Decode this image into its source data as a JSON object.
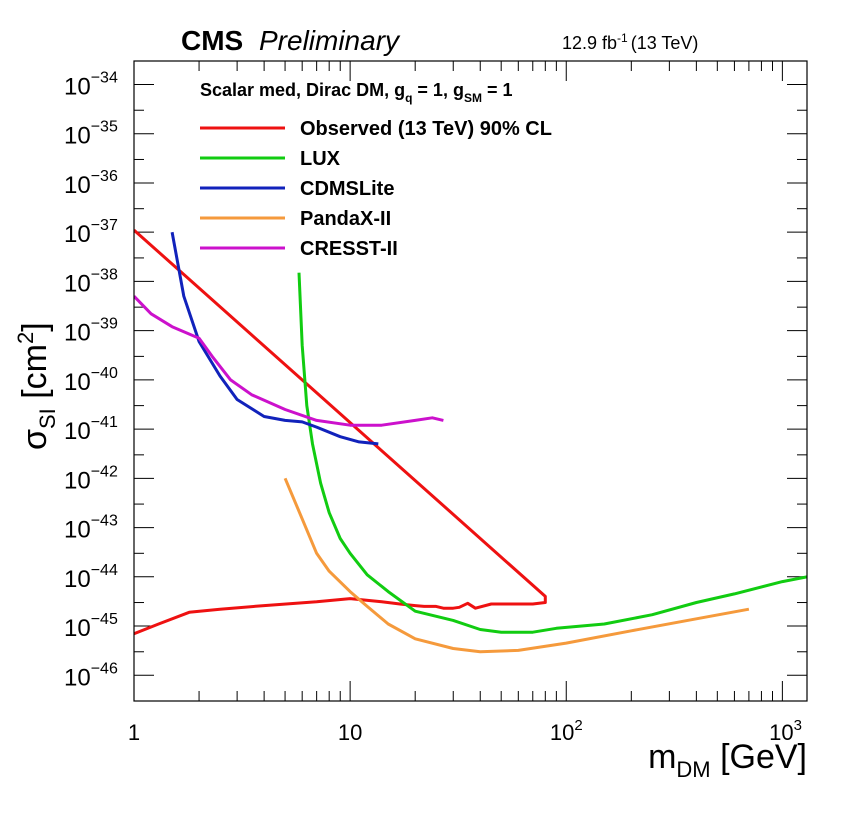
{
  "header": {
    "experiment": "CMS",
    "status": "Preliminary",
    "lumi": "12.9 fb",
    "lumi_exp": "-1",
    "energy": "(13 TeV)"
  },
  "model": {
    "prefix": "Scalar med, Dirac DM,  g",
    "gq_sub": "q",
    "mid": " = 1, g",
    "gsm_sub": "SM",
    "suffix": " = 1"
  },
  "axes": {
    "x_main": "m",
    "x_sub": "DM",
    "x_unit": " [GeV]",
    "y_main": "σ",
    "y_sub": "SI",
    "y_unit_open": " [cm",
    "y_unit_exp": "2",
    "y_unit_close": "]"
  },
  "colors": {
    "observed": "#ee1111",
    "lux": "#11cc11",
    "cdmslite": "#1122bb",
    "pandax": "#f59a3c",
    "cresst": "#cc11cc"
  },
  "chart_data": {
    "type": "line",
    "xscale": "log",
    "yscale": "log",
    "xlim": [
      1,
      1300
    ],
    "ylim": [
      3e-47,
      3e-34
    ],
    "legend_placement": "top-left",
    "x_ticks": [
      {
        "value": 1,
        "base": "1",
        "exp": ""
      },
      {
        "value": 10,
        "base": "10",
        "exp": ""
      },
      {
        "value": 100,
        "base": "10",
        "exp": "2"
      },
      {
        "value": 1000,
        "base": "10",
        "exp": "3"
      }
    ],
    "y_ticks": [
      {
        "value": 1e-34,
        "base": "10",
        "exp": "−34"
      },
      {
        "value": 1e-35,
        "base": "10",
        "exp": "−35"
      },
      {
        "value": 1e-36,
        "base": "10",
        "exp": "−36"
      },
      {
        "value": 1e-37,
        "base": "10",
        "exp": "−37"
      },
      {
        "value": 1e-38,
        "base": "10",
        "exp": "−38"
      },
      {
        "value": 1e-39,
        "base": "10",
        "exp": "−39"
      },
      {
        "value": 1e-40,
        "base": "10",
        "exp": "−40"
      },
      {
        "value": 1e-41,
        "base": "10",
        "exp": "−41"
      },
      {
        "value": 1e-42,
        "base": "10",
        "exp": "−42"
      },
      {
        "value": 1e-43,
        "base": "10",
        "exp": "−43"
      },
      {
        "value": 1e-44,
        "base": "10",
        "exp": "−44"
      },
      {
        "value": 1e-45,
        "base": "10",
        "exp": "−45"
      },
      {
        "value": 1e-46,
        "base": "10",
        "exp": "−46"
      }
    ],
    "series": [
      {
        "key": "observed",
        "name": "Observed (13 TeV) 90% CL",
        "points": [
          [
            1,
            1.1e-37
          ],
          [
            80,
            4e-45
          ],
          [
            80,
            3e-45
          ],
          [
            70,
            2.8e-45
          ],
          [
            65,
            2.8e-45
          ],
          [
            55,
            2.8e-45
          ],
          [
            45,
            2.8e-45
          ],
          [
            38,
            2.3e-45
          ],
          [
            35,
            2.9e-45
          ],
          [
            32,
            2.4e-45
          ],
          [
            30,
            2.3e-45
          ],
          [
            27,
            2.3e-45
          ],
          [
            25,
            2.5e-45
          ],
          [
            22,
            2.5e-45
          ],
          [
            20,
            2.6e-45
          ],
          [
            17,
            2.8e-45
          ],
          [
            14,
            3.1e-45
          ],
          [
            10,
            3.6e-45
          ],
          [
            7,
            3.1e-45
          ],
          [
            4,
            2.6e-45
          ],
          [
            2.5,
            2.2e-45
          ],
          [
            1.8,
            1.9e-45
          ],
          [
            1.3,
            1.1e-45
          ],
          [
            1,
            7e-46
          ]
        ]
      },
      {
        "key": "lux",
        "name": "LUX",
        "points": [
          [
            5.8,
            1.5e-38
          ],
          [
            6.0,
            5e-40
          ],
          [
            6.3,
            3e-41
          ],
          [
            6.7,
            5e-42
          ],
          [
            7.3,
            8e-43
          ],
          [
            8,
            2e-43
          ],
          [
            9,
            6e-44
          ],
          [
            10,
            3e-44
          ],
          [
            12,
            1.1e-44
          ],
          [
            15,
            5e-45
          ],
          [
            20,
            2e-45
          ],
          [
            30,
            1.3e-45
          ],
          [
            40,
            8.5e-46
          ],
          [
            50,
            7.5e-46
          ],
          [
            70,
            7.5e-46
          ],
          [
            90,
            9e-46
          ],
          [
            150,
            1.1e-45
          ],
          [
            250,
            1.7e-45
          ],
          [
            400,
            3e-45
          ],
          [
            600,
            4.5e-45
          ],
          [
            1000,
            8e-45
          ],
          [
            1300,
            1e-44
          ]
        ]
      },
      {
        "key": "cdmslite",
        "name": "CDMSLite",
        "points": [
          [
            1.5,
            1e-37
          ],
          [
            1.7,
            5e-39
          ],
          [
            2,
            6e-40
          ],
          [
            2.5,
            1.2e-40
          ],
          [
            3,
            4e-41
          ],
          [
            4,
            1.8e-41
          ],
          [
            5,
            1.5e-41
          ],
          [
            6,
            1.4e-41
          ],
          [
            7,
            1.1e-41
          ],
          [
            9,
            7e-42
          ],
          [
            11,
            5.5e-42
          ],
          [
            13.5,
            5e-42
          ]
        ]
      },
      {
        "key": "pandax",
        "name": "PandaX-II",
        "points": [
          [
            5,
            1e-42
          ],
          [
            6,
            1.5e-43
          ],
          [
            7,
            3e-44
          ],
          [
            8,
            1.3e-44
          ],
          [
            10,
            5e-45
          ],
          [
            12,
            2.5e-45
          ],
          [
            15,
            1.1e-45
          ],
          [
            20,
            5.5e-46
          ],
          [
            30,
            3.5e-46
          ],
          [
            40,
            3e-46
          ],
          [
            60,
            3.2e-46
          ],
          [
            100,
            4.5e-46
          ],
          [
            200,
            8e-46
          ],
          [
            400,
            1.4e-45
          ],
          [
            700,
            2.2e-45
          ]
        ]
      },
      {
        "key": "cresst",
        "name": "CRESST-II",
        "points": [
          [
            1,
            5e-39
          ],
          [
            1.2,
            2.2e-39
          ],
          [
            1.5,
            1.2e-39
          ],
          [
            2,
            7e-40
          ],
          [
            2.3,
            3e-40
          ],
          [
            2.8,
            1e-40
          ],
          [
            3.5,
            5e-41
          ],
          [
            5,
            2.5e-41
          ],
          [
            7,
            1.5e-41
          ],
          [
            10,
            1.2e-41
          ],
          [
            14,
            1.2e-41
          ],
          [
            20,
            1.5e-41
          ],
          [
            24,
            1.7e-41
          ],
          [
            27,
            1.5e-41
          ]
        ]
      }
    ]
  }
}
